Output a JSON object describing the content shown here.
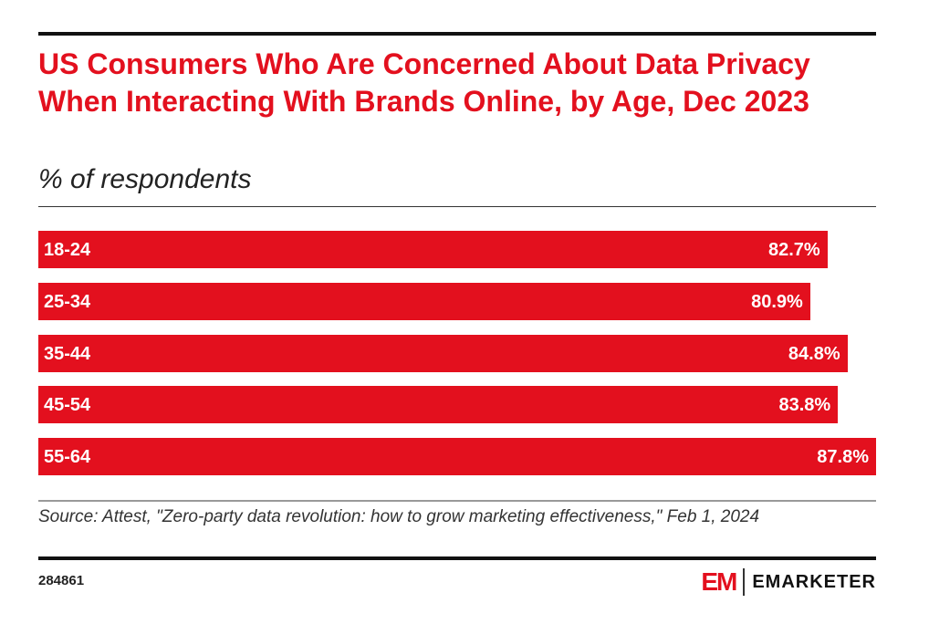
{
  "chart_data": {
    "type": "bar",
    "title": "US Consumers Who Are Concerned About Data Privacy When Interacting With Brands Online, by Age, Dec 2023",
    "subtitle": "% of respondents",
    "categories": [
      "18-24",
      "25-34",
      "35-44",
      "45-54",
      "55-64"
    ],
    "values": [
      82.7,
      80.9,
      84.8,
      83.8,
      87.8
    ],
    "value_labels": [
      "82.7%",
      "80.9%",
      "84.8%",
      "83.8%",
      "87.8%"
    ],
    "xlim": [
      0,
      87.8
    ],
    "xlabel": "",
    "ylabel": ""
  },
  "source": "Source: Attest, \"Zero-party data revolution: how to grow marketing effectiveness,\" Feb 1, 2024",
  "chart_id": "284861",
  "logo": {
    "mark": "EM",
    "name": "EMARKETER"
  },
  "colors": {
    "bar": "#e3101e"
  }
}
